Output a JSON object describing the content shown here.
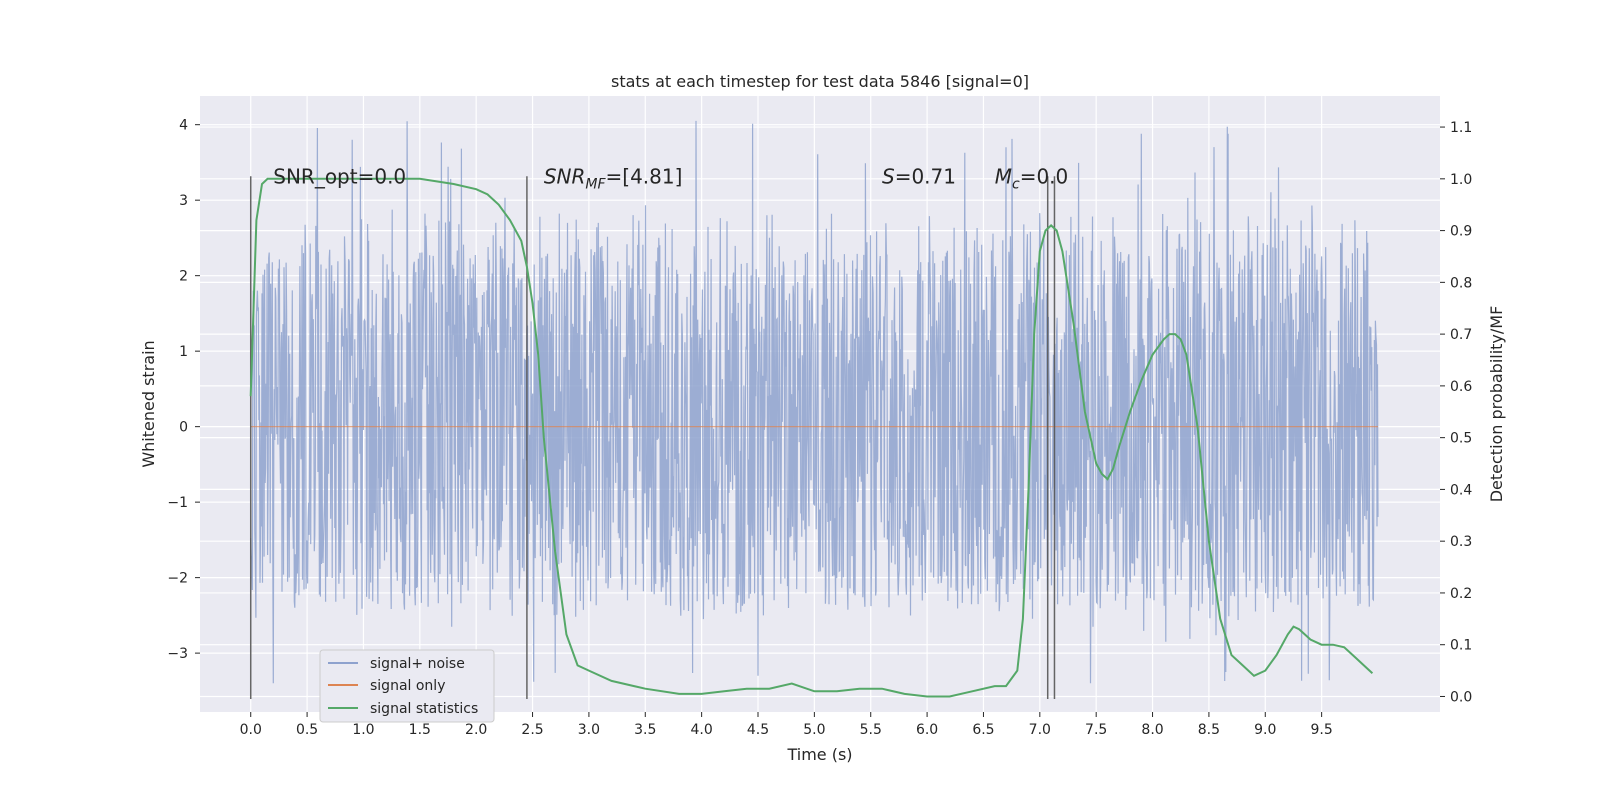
{
  "chart_data": {
    "type": "line",
    "title": "stats at each timestep for test data 5846 [signal=0]",
    "xlabel": "Time (s)",
    "ylabel": "Whitened strain",
    "ylabel_right": "Detection probability/MF",
    "xlim": [
      -0.45,
      10.55
    ],
    "ylim": [
      -3.78,
      4.38
    ],
    "ylim_right": [
      -0.03,
      1.16
    ],
    "x_ticks": [
      0.0,
      0.5,
      1.0,
      1.5,
      2.0,
      2.5,
      3.0,
      3.5,
      4.0,
      4.5,
      5.0,
      5.5,
      6.0,
      6.5,
      7.0,
      7.5,
      8.0,
      8.5,
      9.0,
      9.5
    ],
    "x_tick_labels": [
      "0.0",
      "0.5",
      "1.0",
      "1.5",
      "2.0",
      "2.5",
      "3.0",
      "3.5",
      "4.0",
      "4.5",
      "5.0",
      "5.5",
      "6.0",
      "6.5",
      "7.0",
      "7.5",
      "8.0",
      "8.5",
      "9.0",
      "9.5"
    ],
    "y_ticks": [
      -3,
      -2,
      -1,
      0,
      1,
      2,
      3,
      4
    ],
    "y_tick_labels": [
      "−3",
      "−2",
      "−1",
      "0",
      "1",
      "2",
      "3",
      "4"
    ],
    "y_right_ticks": [
      0.0,
      0.1,
      0.2,
      0.3,
      0.4,
      0.5,
      0.6,
      0.7,
      0.8,
      0.9,
      1.0,
      1.1
    ],
    "y_right_tick_labels": [
      "0.0",
      "0.1",
      "0.2",
      "0.3",
      "0.4",
      "0.5",
      "0.6",
      "0.7",
      "0.8",
      "0.9",
      "1.0",
      "1.1"
    ],
    "grid": true,
    "legend_position": "lower-left",
    "series": [
      {
        "name": "signal+ noise",
        "axis": "left",
        "color": "#8ea2ce",
        "kind": "noise",
        "x_range": [
          0.0,
          10.0
        ],
        "core_band": [
          -1.5,
          1.5
        ],
        "extremes_band": [
          -3.4,
          4.05
        ],
        "notable_peaks": [
          [
            0.9,
            3.8
          ],
          [
            3.95,
            4.05
          ],
          [
            6.7,
            3.7
          ],
          [
            7.9,
            3.88
          ],
          [
            8.67,
            3.88
          ]
        ],
        "notable_troughs": [
          [
            0.2,
            -3.4
          ],
          [
            4.5,
            -3.3
          ],
          [
            7.45,
            -3.4
          ],
          [
            8.65,
            -3.25
          ]
        ]
      },
      {
        "name": "signal only",
        "axis": "left",
        "color": "#dd8452",
        "x": [
          0.0,
          10.0
        ],
        "y": [
          0.0,
          0.0
        ]
      },
      {
        "name": "signal statistics",
        "axis": "right",
        "color": "#55a868",
        "x": [
          0.0,
          0.05,
          0.1,
          0.15,
          0.2,
          0.3,
          0.5,
          0.8,
          1.0,
          1.2,
          1.5,
          1.8,
          2.0,
          2.1,
          2.2,
          2.3,
          2.4,
          2.45,
          2.5,
          2.55,
          2.6,
          2.7,
          2.8,
          2.9,
          3.0,
          3.2,
          3.5,
          3.8,
          4.0,
          4.2,
          4.4,
          4.6,
          4.8,
          5.0,
          5.2,
          5.4,
          5.6,
          5.8,
          6.0,
          6.2,
          6.4,
          6.6,
          6.7,
          6.8,
          6.85,
          6.9,
          6.95,
          7.0,
          7.05,
          7.1,
          7.15,
          7.2,
          7.3,
          7.4,
          7.5,
          7.55,
          7.6,
          7.65,
          7.7,
          7.8,
          7.9,
          8.0,
          8.1,
          8.15,
          8.2,
          8.25,
          8.3,
          8.4,
          8.5,
          8.6,
          8.7,
          8.8,
          8.9,
          9.0,
          9.1,
          9.2,
          9.25,
          9.3,
          9.4,
          9.5,
          9.6,
          9.7,
          9.8,
          9.9,
          9.95
        ],
        "y": [
          0.58,
          0.92,
          0.99,
          1.0,
          1.0,
          1.0,
          1.0,
          1.0,
          1.0,
          1.0,
          1.0,
          0.99,
          0.98,
          0.97,
          0.95,
          0.92,
          0.88,
          0.83,
          0.76,
          0.66,
          0.5,
          0.28,
          0.12,
          0.06,
          0.05,
          0.03,
          0.015,
          0.005,
          0.005,
          0.01,
          0.015,
          0.015,
          0.025,
          0.01,
          0.01,
          0.015,
          0.015,
          0.005,
          0.0,
          0.0,
          0.01,
          0.02,
          0.02,
          0.05,
          0.15,
          0.4,
          0.7,
          0.86,
          0.9,
          0.91,
          0.9,
          0.86,
          0.72,
          0.55,
          0.45,
          0.43,
          0.42,
          0.44,
          0.48,
          0.55,
          0.61,
          0.66,
          0.69,
          0.7,
          0.7,
          0.69,
          0.66,
          0.52,
          0.3,
          0.15,
          0.08,
          0.06,
          0.04,
          0.05,
          0.08,
          0.12,
          0.135,
          0.13,
          0.11,
          0.1,
          0.1,
          0.095,
          0.075,
          0.055,
          0.045
        ]
      }
    ],
    "vertical_lines": [
      {
        "x": 0.0,
        "color": "#555555",
        "y_right_range": [
          -0.005,
          1.005
        ]
      },
      {
        "x": 2.45,
        "color": "#555555",
        "y_right_range": [
          -0.005,
          1.005
        ]
      },
      {
        "x": 7.07,
        "color": "#555555",
        "y_right_range": [
          -0.005,
          1.005
        ]
      },
      {
        "x": 7.13,
        "color": "#555555",
        "y_right_range": [
          -0.005,
          1.005
        ]
      }
    ],
    "annotations": [
      {
        "id": "snr-opt",
        "text": "SNR_opt=0.0",
        "x": 0.2,
        "y": 3.22
      },
      {
        "id": "snr-mf",
        "text": "SNR",
        "sub": "MF",
        "tail": "=[4.81]",
        "italic": true,
        "x": 2.6,
        "y": 3.22
      },
      {
        "id": "s-stat",
        "text": "S",
        "tail": "=0.71",
        "italic": true,
        "x": 5.6,
        "y": 3.22
      },
      {
        "id": "chirp-mass",
        "text": "M",
        "sub": "c",
        "tail": "=0.0",
        "italic": true,
        "x": 6.6,
        "y": 3.22
      }
    ]
  },
  "legend": {
    "items": [
      {
        "label": "signal+ noise",
        "color": "#8ea2ce"
      },
      {
        "label": "signal only",
        "color": "#dd8452"
      },
      {
        "label": "signal statistics",
        "color": "#55a868"
      }
    ]
  }
}
